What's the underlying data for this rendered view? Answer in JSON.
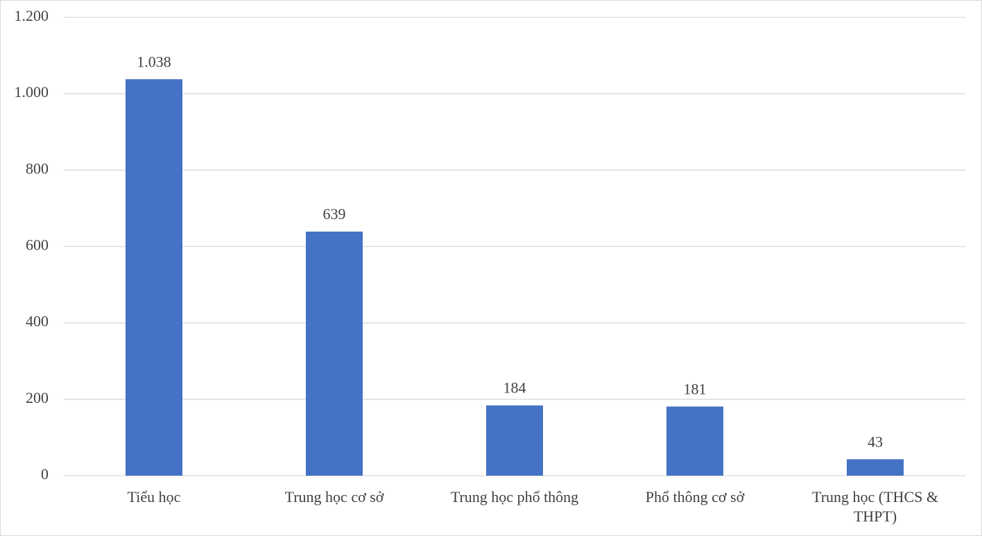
{
  "chart_data": {
    "type": "bar",
    "categories": [
      "Tiểu học",
      "Trung học cơ sở",
      "Trung học phổ thông",
      "Phổ thông cơ sở",
      "Trung học (THCS & THPT)"
    ],
    "values": [
      1038,
      639,
      184,
      181,
      43
    ],
    "value_labels": [
      "1.038",
      "639",
      "184",
      "181",
      "43"
    ],
    "color": "#4472c4",
    "ylim": [
      0,
      1200
    ],
    "yticks": [
      0,
      200,
      400,
      600,
      800,
      {
        "value": 1000,
        "label": "1.000"
      },
      {
        "value": 1200,
        "label": "1.200"
      }
    ],
    "grid": true
  }
}
